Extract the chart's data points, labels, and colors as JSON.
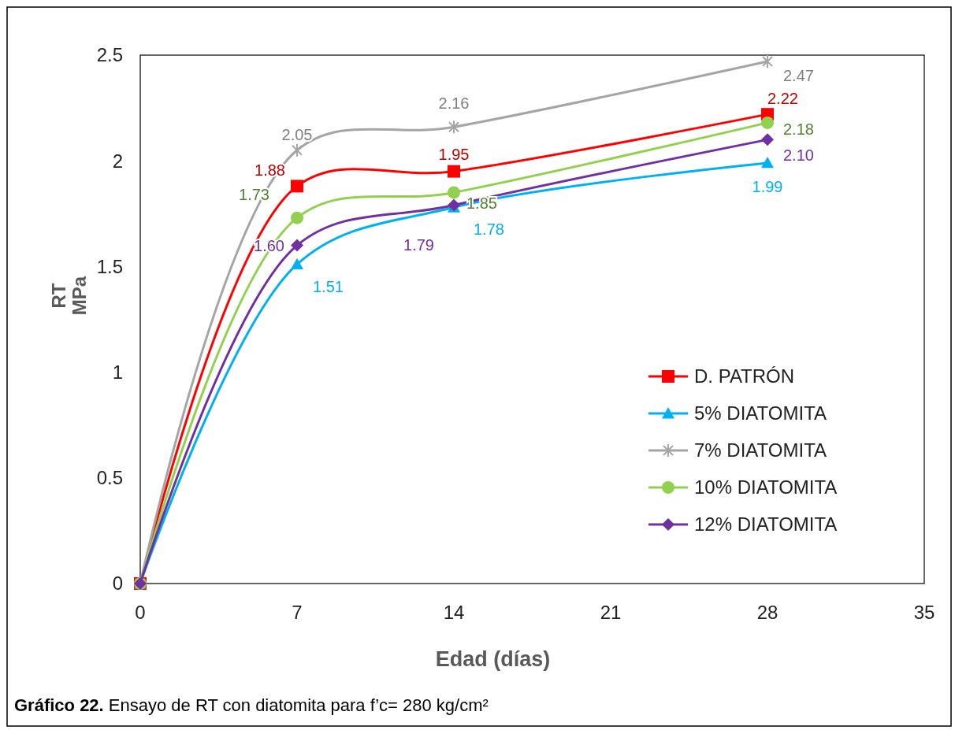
{
  "chart_data": {
    "type": "line",
    "title": "Gráfico 22. Ensayo de RT con diatomita para f’c= 280 kg/cm²",
    "xlabel": "Edad (días)",
    "ylabel": "RT\nMPa",
    "x": [
      0,
      7,
      14,
      28
    ],
    "xlim": [
      0,
      35
    ],
    "xticks": [
      0,
      7,
      14,
      21,
      28,
      35
    ],
    "ylim": [
      0,
      2.5
    ],
    "yticks": [
      0,
      0.5,
      1,
      1.5,
      2,
      2.5
    ],
    "grid": false,
    "legend": "bottom right",
    "series": [
      {
        "name": "D. PATRÓN",
        "color": "#ff0000",
        "marker": "square",
        "values": [
          0,
          1.88,
          1.95,
          2.22
        ],
        "value_labels": [
          null,
          "1.88",
          "1.95",
          "2.22"
        ]
      },
      {
        "name": "5% DIATOMITA",
        "color": "#00b0f0",
        "marker": "triangle",
        "values": [
          0,
          1.51,
          1.78,
          1.99
        ],
        "value_labels": [
          null,
          "1.51",
          "1.78",
          "1.99"
        ]
      },
      {
        "name": "7% DIATOMITA",
        "color": "#a5a5a5",
        "marker": "cross",
        "values": [
          0,
          2.05,
          2.16,
          2.47
        ],
        "value_labels": [
          null,
          "2.05",
          "2.16",
          "2.47"
        ]
      },
      {
        "name": "10% DIATOMITA",
        "color": "#92d050",
        "marker": "circle",
        "values": [
          0,
          1.73,
          1.85,
          2.18
        ],
        "value_labels": [
          null,
          "1.73",
          "1.85",
          "2.18"
        ]
      },
      {
        "name": "12% DIATOMITA",
        "color": "#7030a0",
        "marker": "diamond",
        "values": [
          0,
          1.6,
          1.79,
          2.1
        ],
        "value_labels": [
          null,
          "1.60",
          "1.79",
          "2.10"
        ]
      }
    ]
  }
}
